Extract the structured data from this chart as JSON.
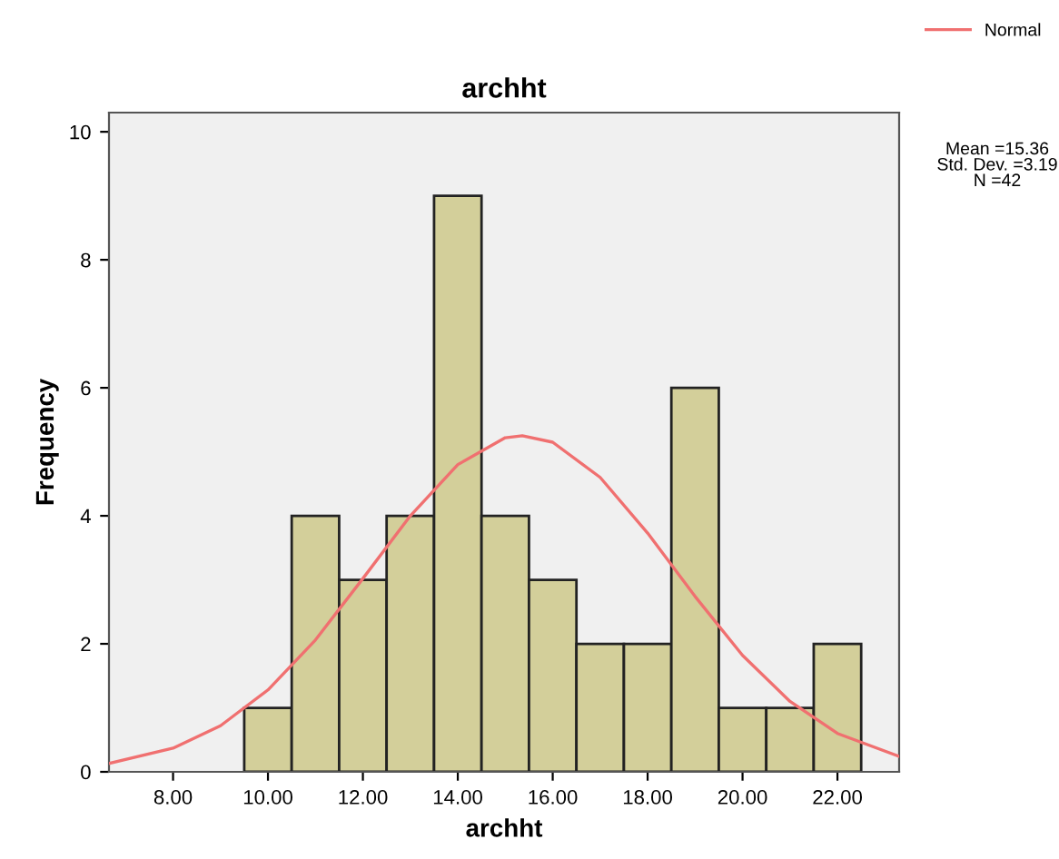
{
  "chart_data": {
    "type": "histogram",
    "title": "archht",
    "xlabel": "archht",
    "ylabel": "Frequency",
    "xlim": [
      6.65,
      23.3
    ],
    "xticks": [
      {
        "value": 8,
        "label": "8.00"
      },
      {
        "value": 10,
        "label": "10.00"
      },
      {
        "value": 12,
        "label": "12.00"
      },
      {
        "value": 14,
        "label": "14.00"
      },
      {
        "value": 16,
        "label": "16.00"
      },
      {
        "value": 18,
        "label": "18.00"
      },
      {
        "value": 20,
        "label": "20.00"
      },
      {
        "value": 22,
        "label": "22.00"
      }
    ],
    "ylim": [
      0,
      10.3
    ],
    "yticks": [
      0,
      2,
      4,
      6,
      8,
      10
    ],
    "series": [
      {
        "color": "#d3cf9a",
        "bins": [
          9.5,
          10.5,
          11.5,
          12.5,
          13.5,
          14.5,
          15.5,
          16.5,
          17.5,
          18.5,
          19.5,
          20.5,
          21.5,
          22.5
        ],
        "values": [
          1,
          4,
          3,
          4,
          9,
          4,
          3,
          2,
          2,
          6,
          1,
          1,
          2
        ]
      },
      {
        "type": "line",
        "name": "Normal",
        "color": "#f07070",
        "x": [
          6.65,
          8,
          9,
          10,
          11,
          12,
          13,
          14,
          15,
          15.36,
          16,
          17,
          18,
          19,
          20,
          21,
          22,
          23.3
        ],
        "values": [
          0.13,
          0.37,
          0.72,
          1.28,
          2.06,
          3.02,
          4.0,
          4.8,
          5.22,
          5.25,
          5.15,
          4.6,
          3.73,
          2.74,
          1.82,
          1.1,
          0.6,
          0.24
        ]
      }
    ],
    "legend": "top right",
    "grid": false,
    "annotations": [
      "Mean =15.36\nStd. Dev. =3.19\nN =42"
    ]
  }
}
